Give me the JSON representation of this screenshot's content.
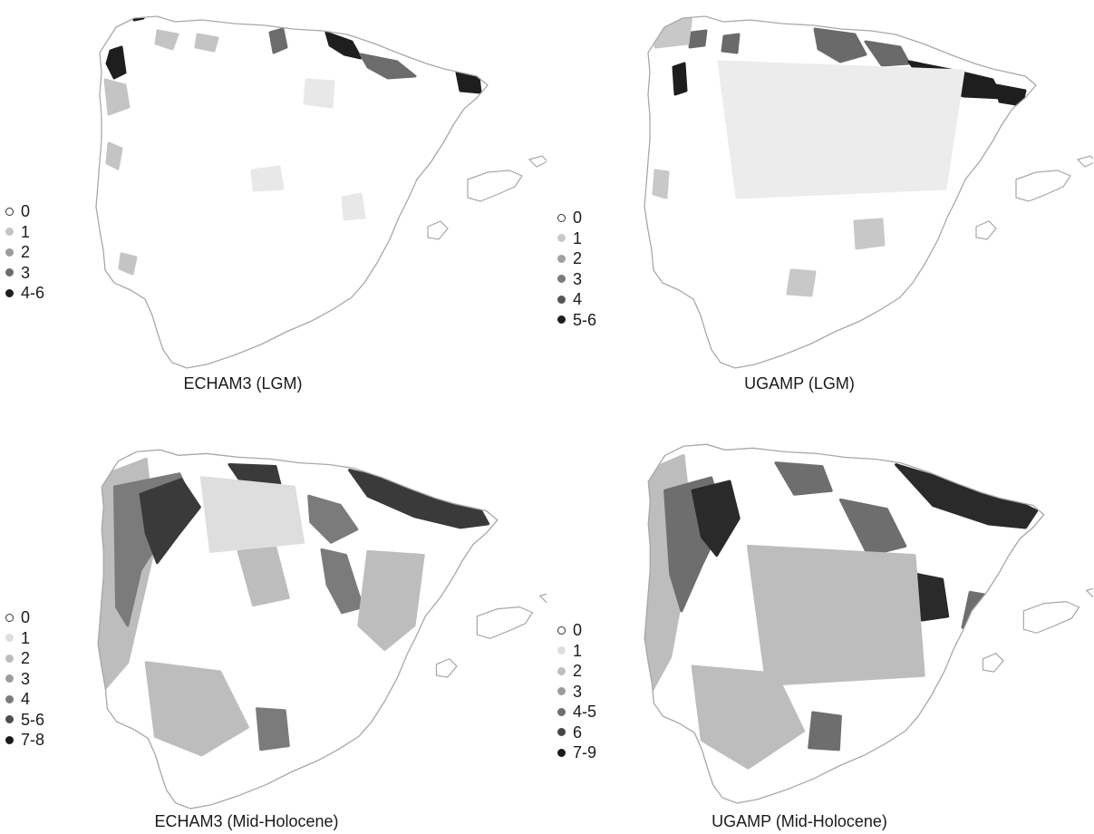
{
  "panels": [
    {
      "id": "echam3-lgm",
      "caption": "ECHAM3 (LGM)",
      "legend": [
        {
          "label": "0",
          "color": "#ffffff"
        },
        {
          "label": "1",
          "color": "#c4c4c4"
        },
        {
          "label": "2",
          "color": "#9b9b9b"
        },
        {
          "label": "3",
          "color": "#6c6c6c"
        },
        {
          "label": "4-6",
          "color": "#1e1e1e"
        }
      ],
      "shading_levels": [
        "#e8e8e8",
        "#c4c4c4",
        "#6c6c6c",
        "#1e1e1e"
      ]
    },
    {
      "id": "ugamp-lgm",
      "caption": "UGAMP (LGM)",
      "legend": [
        {
          "label": "0",
          "color": "#ffffff"
        },
        {
          "label": "1",
          "color": "#c8c8c8"
        },
        {
          "label": "2",
          "color": "#a0a0a0"
        },
        {
          "label": "3",
          "color": "#7a7a7a"
        },
        {
          "label": "4",
          "color": "#555555"
        },
        {
          "label": "5-6",
          "color": "#1e1e1e"
        }
      ],
      "shading_levels": [
        "#ececec",
        "#c8c8c8",
        "#6a6a6a",
        "#1e1e1e"
      ]
    },
    {
      "id": "echam3-mid-holocene",
      "caption": "ECHAM3 (Mid-Holocene)",
      "legend": [
        {
          "label": "0",
          "color": "#ffffff"
        },
        {
          "label": "1",
          "color": "#dedede"
        },
        {
          "label": "2",
          "color": "#bdbdbd"
        },
        {
          "label": "3",
          "color": "#9c9c9c"
        },
        {
          "label": "4",
          "color": "#7b7b7b"
        },
        {
          "label": "5-6",
          "color": "#4c4c4c"
        },
        {
          "label": "7-8",
          "color": "#1a1a1a"
        }
      ],
      "shading_levels": [
        "#dedede",
        "#bdbdbd",
        "#7b7b7b",
        "#3a3a3a"
      ]
    },
    {
      "id": "ugamp-mid-holocene",
      "caption": "UGAMP (Mid-Holocene)",
      "legend": [
        {
          "label": "0",
          "color": "#ffffff"
        },
        {
          "label": "1",
          "color": "#dedede"
        },
        {
          "label": "2",
          "color": "#bdbdbd"
        },
        {
          "label": "3",
          "color": "#9c9c9c"
        },
        {
          "label": "4-5",
          "color": "#6e6e6e"
        },
        {
          "label": "6",
          "color": "#444444"
        },
        {
          "label": "7-9",
          "color": "#1a1a1a"
        }
      ],
      "shading_levels": [
        "#e0e0e0",
        "#bdbdbd",
        "#6e6e6e",
        "#2a2a2a"
      ]
    }
  ]
}
